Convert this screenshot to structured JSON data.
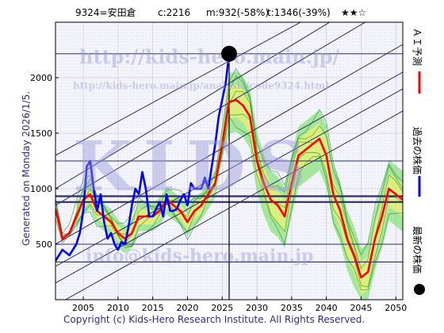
{
  "header": {
    "code": "9324=安田倉",
    "current": "c:2216",
    "mid": "m:932(-58%)",
    "target": "t:1346(-39%)",
    "stars": "★★☆"
  },
  "side_note": "Generated on Monday 2026/1/5.",
  "footer": "Copyright (c) Kids-Hero Research Institute. All Rights Reserved.",
  "watermarks": {
    "url_main": "http://kids-hero.main.jp/",
    "url_analysis": "http://kids-hero.main.jp/analysis/code9324.html",
    "logo": "KIDS",
    "email": "info@kids-hero.main.jp"
  },
  "legend": {
    "ai_forecast": "ＡＩ予測",
    "past_price": "過去の株価",
    "latest_price": "最新の株価"
  },
  "colors": {
    "ai_forecast": "#ff0000",
    "past_price": "#0000ff",
    "latest_price": "#000000",
    "band_green": "#66dd55",
    "band_yellow": "#fff36a",
    "trend_lines": "#2e2e6a"
  },
  "chart_data": {
    "type": "line",
    "xlim": [
      2001,
      2051
    ],
    "ylim": [
      0,
      2500
    ],
    "x_ticks": [
      2005,
      2010,
      2015,
      2020,
      2025,
      2030,
      2035,
      2040,
      2045,
      2050
    ],
    "y_ticks": [
      500,
      1000,
      1500,
      2000
    ],
    "h_levels": [
      2216,
      1250,
      932,
      880,
      500,
      340
    ],
    "current_marker": {
      "x": 2026,
      "y": 2216
    },
    "series": [
      {
        "name": "過去の株価",
        "x": [
          2001,
          2002,
          2003,
          2004,
          2004.5,
          2005,
          2005.5,
          2006,
          2006.5,
          2007,
          2007.5,
          2008,
          2008.5,
          2009,
          2009.5,
          2010,
          2010.5,
          2011,
          2011.5,
          2012,
          2012.5,
          2013,
          2013.5,
          2014,
          2014.5,
          2015,
          2015.5,
          2016,
          2016.5,
          2017,
          2017.5,
          2018,
          2018.5,
          2019,
          2019.5,
          2020,
          2020.5,
          2021,
          2021.5,
          2022,
          2022.5,
          2023,
          2023.5,
          2024,
          2024.5,
          2025,
          2025.5,
          2026
        ],
        "y": [
          350,
          450,
          400,
          500,
          600,
          800,
          1200,
          1250,
          1000,
          800,
          950,
          700,
          550,
          600,
          500,
          450,
          520,
          500,
          650,
          850,
          1000,
          950,
          1150,
          1000,
          750,
          750,
          820,
          880,
          750,
          950,
          800,
          800,
          820,
          900,
          950,
          850,
          1050,
          1000,
          1000,
          1000,
          1100,
          1000,
          1200,
          1400,
          1650,
          1800,
          1950,
          2216
        ]
      },
      {
        "name": "ＡＩ予測",
        "x": [
          2001,
          2002,
          2003,
          2004,
          2005,
          2006,
          2007,
          2008,
          2009,
          2010,
          2011,
          2012,
          2013,
          2014,
          2015,
          2016,
          2017,
          2018,
          2019,
          2020,
          2021,
          2022,
          2023,
          2024,
          2025,
          2026,
          2027,
          2028,
          2029,
          2030,
          2031,
          2032,
          2033,
          2034,
          2035,
          2036,
          2037,
          2038,
          2039,
          2040,
          2041,
          2042,
          2043,
          2044,
          2045,
          2046,
          2047,
          2048,
          2049,
          2050,
          2051
        ],
        "y": [
          820,
          550,
          600,
          750,
          900,
          950,
          800,
          750,
          700,
          600,
          550,
          600,
          750,
          750,
          750,
          800,
          900,
          850,
          800,
          700,
          800,
          850,
          950,
          1050,
          1400,
          1780,
          1800,
          1750,
          1650,
          1250,
          1050,
          900,
          850,
          750,
          1050,
          1300,
          1350,
          1400,
          1450,
          1300,
          950,
          800,
          550,
          400,
          200,
          250,
          550,
          750,
          1000,
          950,
          900
        ]
      }
    ]
  }
}
